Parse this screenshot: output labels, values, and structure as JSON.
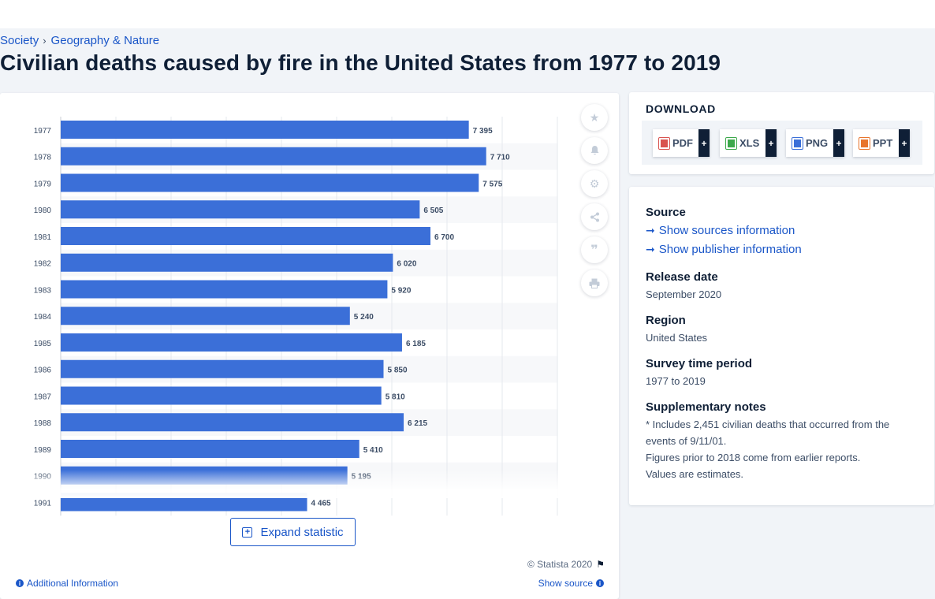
{
  "breadcrumb": {
    "items": [
      "Society",
      "Geography & Nature"
    ]
  },
  "page": {
    "title": "Civilian deaths caused by fire in the United States from 1977 to 2019"
  },
  "chart_data": {
    "type": "bar",
    "orientation": "horizontal",
    "bar_color": "#3b6fd8",
    "grid": true,
    "categories": [
      "1977",
      "1978",
      "1979",
      "1980",
      "1981",
      "1982",
      "1983",
      "1984",
      "1985",
      "1986",
      "1987",
      "1988",
      "1989",
      "1990",
      "1991"
    ],
    "values": [
      7395,
      7710,
      7575,
      6505,
      6700,
      6020,
      5920,
      5240,
      6185,
      5850,
      5810,
      6215,
      5410,
      5195,
      4465
    ],
    "value_labels": [
      "7 395",
      "7 710",
      "7 575",
      "6 505",
      "6 700",
      "6 020",
      "5 920",
      "5 240",
      "6 185",
      "5 850",
      "5 810",
      "6 215",
      "5 410",
      "5 195",
      "4 465"
    ],
    "xlim": [
      0,
      9000
    ],
    "xlabel": "",
    "ylabel": ""
  },
  "chart_tools": [
    "favorite-icon",
    "notification-icon",
    "settings-icon",
    "share-icon",
    "citation-icon",
    "print-icon"
  ],
  "chart_footer": {
    "expand_label": "Expand statistic",
    "expand_icon": "+",
    "copyright": "© Statista 2020",
    "flag_icon": "⚑",
    "additional_info": "Additional Information",
    "show_source": "Show source",
    "info_glyph": "i"
  },
  "download": {
    "title": "DOWNLOAD",
    "plus": "+",
    "buttons": [
      {
        "label": "PDF",
        "color": "#d9534f"
      },
      {
        "label": "XLS",
        "color": "#3ca94b"
      },
      {
        "label": "PNG",
        "color": "#3b6fd8"
      },
      {
        "label": "PPT",
        "color": "#e8742c"
      }
    ]
  },
  "details": {
    "source_heading": "Source",
    "source_link": "Show sources information",
    "publisher_link": "Show publisher information",
    "arrow": "➞",
    "release_heading": "Release date",
    "release_value": "September 2020",
    "region_heading": "Region",
    "region_value": "United States",
    "survey_heading": "Survey time period",
    "survey_value": "1977 to 2019",
    "notes_heading": "Supplementary notes",
    "notes_1": "* Includes 2,451 civilian deaths that occurred from the events of 9/11/01.",
    "notes_2": "Figures prior to 2018 come from earlier reports.",
    "notes_3": "Values are estimates."
  }
}
